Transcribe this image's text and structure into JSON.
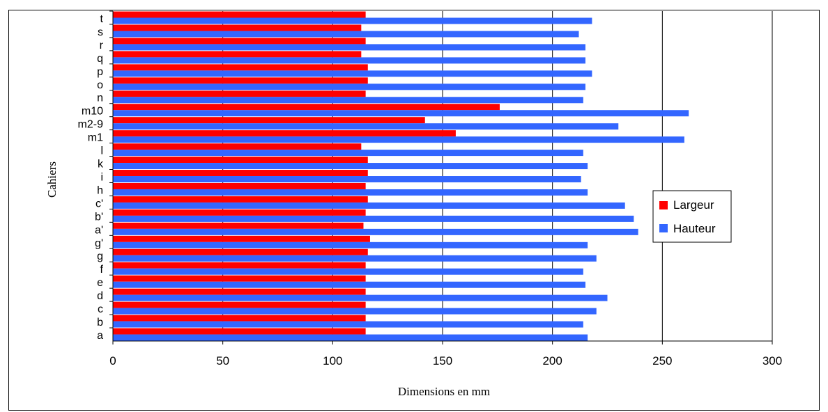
{
  "chart_data": {
    "type": "bar",
    "orientation": "horizontal",
    "categories": [
      "a",
      "b",
      "c",
      "d",
      "e",
      "f",
      "g",
      "g'",
      "a'",
      "b'",
      "c'",
      "h",
      "i",
      "k",
      "l",
      "m1",
      "m2-9",
      "m10",
      "n",
      "o",
      "p",
      "q",
      "r",
      "s",
      "t"
    ],
    "series": [
      {
        "name": "Largeur",
        "color": "#ff0000",
        "values": [
          115,
          115,
          115,
          115,
          115,
          115,
          116,
          117,
          114,
          115,
          116,
          115,
          116,
          116,
          113,
          156,
          142,
          176,
          115,
          116,
          116,
          113,
          115,
          113,
          115
        ]
      },
      {
        "name": "Hauteur",
        "color": "#3366ff",
        "values": [
          216,
          214,
          220,
          225,
          215,
          214,
          220,
          216,
          239,
          237,
          233,
          216,
          213,
          216,
          214,
          260,
          230,
          262,
          214,
          215,
          218,
          215,
          215,
          212,
          218
        ]
      }
    ],
    "xlabel": "Dimensions en mm",
    "ylabel": "Cahiers",
    "xlim": [
      0,
      300
    ],
    "xticks": [
      "0",
      "50",
      "100",
      "150",
      "200",
      "250",
      "300"
    ],
    "grid": "vertical",
    "legend": "right"
  }
}
